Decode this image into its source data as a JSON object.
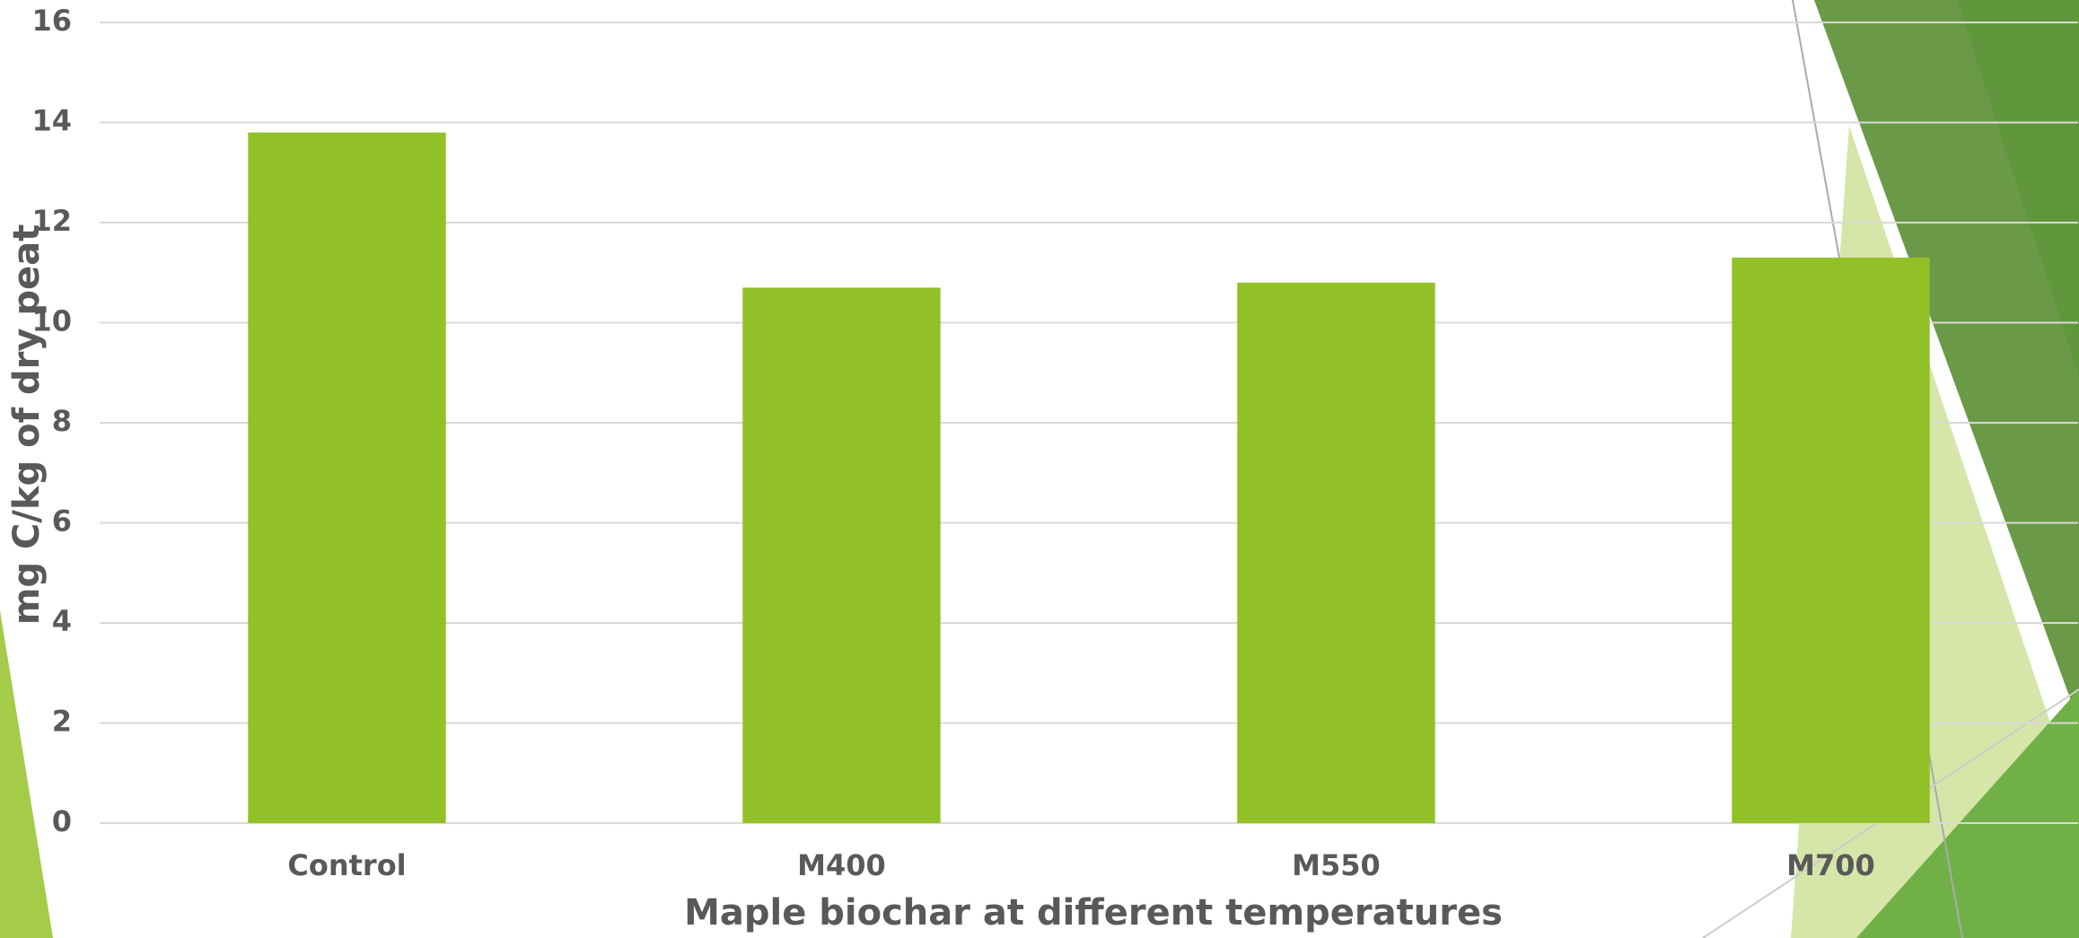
{
  "chart_data": {
    "type": "bar",
    "y_label": "mg C/kg of dry peat",
    "x_label": "Maple biochar at different temperatures",
    "categories": [
      "Control",
      "M400",
      "M550",
      "M700"
    ],
    "values": [
      13.8,
      10.7,
      10.8,
      11.3
    ],
    "color": "#92c127",
    "ylim": [
      0,
      16
    ],
    "yticks": [
      0,
      2,
      4,
      6,
      8,
      10,
      12,
      14,
      16
    ],
    "grid": true
  }
}
